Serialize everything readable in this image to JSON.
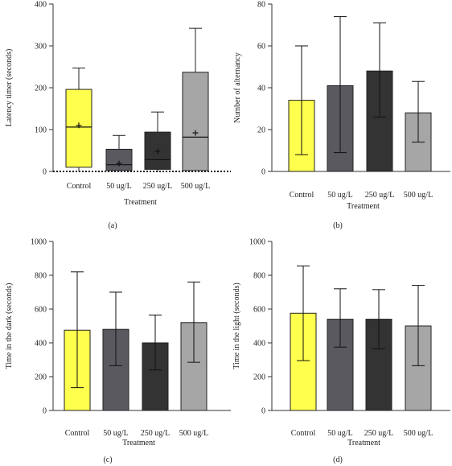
{
  "colors": {
    "control": "#ffff4d",
    "50ug": "#5a595f",
    "250ug": "#333333",
    "500ug": "#a6a6a6",
    "axis": "#333333"
  },
  "chart_data": [
    {
      "panel": "(a)",
      "type": "box",
      "xlabel": "Treatment",
      "ylabel": "Latency timer (seconds)",
      "ylim": [
        0,
        400
      ],
      "yticks": [
        0,
        100,
        200,
        300,
        400
      ],
      "categories": [
        "Control",
        "50 ug/L",
        "250 ug/L",
        "500 ug/L"
      ],
      "boxes": [
        {
          "category": "Control",
          "min": 0,
          "q1": 10,
          "median": 106,
          "q3": 196,
          "max": 247,
          "mean": 110,
          "color_key": "control"
        },
        {
          "category": "50 ug/L",
          "min": 0,
          "q1": 2,
          "median": 16,
          "q3": 53,
          "max": 86,
          "mean": 19,
          "color_key": "50ug"
        },
        {
          "category": "250 ug/L",
          "min": 0,
          "q1": 5,
          "median": 28,
          "q3": 94,
          "max": 142,
          "mean": 48,
          "color_key": "250ug"
        },
        {
          "category": "500 ug/L",
          "min": 0,
          "q1": 2,
          "median": 82,
          "q3": 237,
          "max": 342,
          "mean": 92,
          "color_key": "500ug"
        }
      ],
      "reference_line": 0
    },
    {
      "panel": "(b)",
      "type": "bar",
      "xlabel": "Treatment",
      "ylabel": "Number of alternancy",
      "ylim": [
        0,
        80
      ],
      "yticks": [
        0,
        20,
        40,
        60,
        80
      ],
      "categories": [
        "Control",
        "50 ug/L",
        "250 ug/L",
        "500 ug/L"
      ],
      "values": [
        34,
        41,
        48,
        28
      ],
      "error_low": [
        8,
        9,
        26,
        14
      ],
      "error_high": [
        60,
        74,
        71,
        43
      ],
      "color_keys": [
        "control",
        "50ug",
        "250ug",
        "500ug"
      ]
    },
    {
      "panel": "(c)",
      "type": "bar",
      "xlabel": "Treatment",
      "ylabel": "Time in the dark (seconds)",
      "ylim": [
        0,
        1000
      ],
      "yticks": [
        0,
        200,
        400,
        600,
        800,
        1000
      ],
      "categories": [
        "Control",
        "50 ug/L",
        "250 ug/L",
        "500 ug/L"
      ],
      "values": [
        475,
        480,
        400,
        520
      ],
      "error_low": [
        135,
        265,
        240,
        285
      ],
      "error_high": [
        820,
        700,
        565,
        760
      ],
      "color_keys": [
        "control",
        "50ug",
        "250ug",
        "500ug"
      ]
    },
    {
      "panel": "(d)",
      "type": "bar",
      "xlabel": "Treatment",
      "ylabel": "Time in the light (seconds)",
      "ylim": [
        0,
        1000
      ],
      "yticks": [
        0,
        200,
        400,
        600,
        800,
        1000
      ],
      "categories": [
        "Control",
        "50 ug/L",
        "250 ug/L",
        "500 ug/L"
      ],
      "values": [
        575,
        540,
        540,
        500
      ],
      "error_low": [
        295,
        375,
        365,
        265
      ],
      "error_high": [
        855,
        720,
        715,
        740
      ],
      "color_keys": [
        "control",
        "50ug",
        "250ug",
        "500ug"
      ]
    }
  ]
}
